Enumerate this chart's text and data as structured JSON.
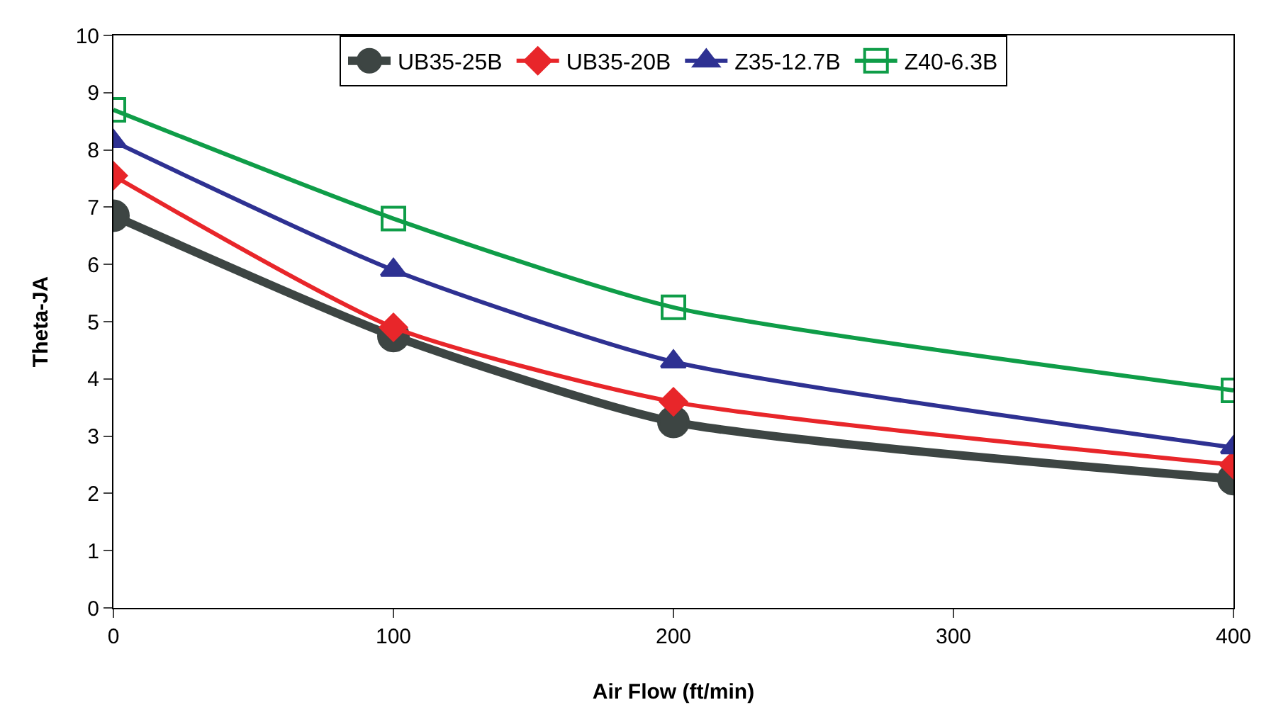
{
  "chart_data": {
    "type": "line",
    "xlabel": "Air Flow (ft/min)",
    "ylabel": "Theta-JA",
    "x": [
      0,
      100,
      200,
      400
    ],
    "xlim": [
      0,
      400
    ],
    "xticks": [
      0,
      100,
      200,
      300,
      400
    ],
    "ylim": [
      0,
      10
    ],
    "yticks": [
      0,
      1,
      2,
      3,
      4,
      5,
      6,
      7,
      8,
      9,
      10
    ],
    "legend": "top",
    "series": [
      {
        "name": "UB35-25B",
        "color": "#3d4543",
        "marker": "circle",
        "values": [
          6.85,
          4.75,
          3.25,
          2.25
        ]
      },
      {
        "name": "UB35-20B",
        "color": "#e8262a",
        "marker": "diamond",
        "values": [
          7.55,
          4.9,
          3.6,
          2.5
        ]
      },
      {
        "name": "Z35-12.7B",
        "color": "#2e3192",
        "marker": "triangle",
        "values": [
          8.15,
          5.9,
          4.3,
          2.8
        ]
      },
      {
        "name": "Z40-6.3B",
        "color": "#0f9d48",
        "marker": "square-open",
        "values": [
          8.7,
          6.8,
          5.25,
          3.8
        ]
      }
    ]
  }
}
